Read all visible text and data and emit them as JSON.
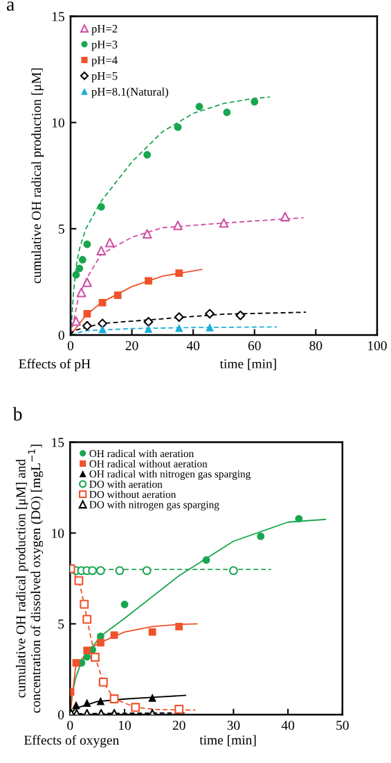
{
  "chart_data": [
    {
      "type": "scatter",
      "title": "a",
      "xlabel": "time [min]",
      "ylabel": "cumulative OH radical production [μM]",
      "annotations": [
        "Effects of pH"
      ],
      "xlim": [
        0,
        100
      ],
      "ylim": [
        0,
        15
      ],
      "xticks": [
        0,
        20,
        40,
        60,
        80,
        100
      ],
      "yticks": [
        0,
        5,
        10,
        15
      ],
      "grid": false,
      "legend": "top left",
      "series": [
        {
          "name": "pH=2",
          "color": "#d04fa6",
          "marker": "triangle",
          "x": [
            1.8,
            3.5,
            5.4,
            10,
            12.8,
            25,
            35,
            50,
            70
          ],
          "values": [
            0.65,
            2.0,
            2.48,
            3.97,
            4.35,
            4.76,
            5.16,
            5.27,
            5.57
          ]
        },
        {
          "name": "pH=3",
          "color": "#1aa650",
          "marker": "circle",
          "x": [
            1.8,
            2.9,
            3.9,
            5.4,
            10,
            25,
            35,
            42,
            51,
            60
          ],
          "values": [
            2.83,
            3.13,
            3.54,
            4.27,
            6.03,
            8.48,
            9.78,
            10.75,
            10.48,
            10.98
          ]
        },
        {
          "name": "pH=4",
          "color": "#f0522a",
          "marker": "square",
          "x": [
            5.4,
            10.4,
            15.4,
            25.4,
            35.4
          ],
          "values": [
            1.0,
            1.52,
            1.87,
            2.55,
            2.91
          ]
        },
        {
          "name": "pH=5",
          "color": "#000000",
          "marker": "diamond",
          "x": [
            5.4,
            10.4,
            25.4,
            35.4,
            45.4,
            55.4
          ],
          "values": [
            0.43,
            0.54,
            0.62,
            0.84,
            1.0,
            0.92
          ]
        },
        {
          "name": "pH=8.1(Natural)",
          "color": "#1aaedc",
          "marker": "triangle",
          "x": [
            10.4,
            25.4,
            35.4,
            45.4
          ],
          "values": [
            0.27,
            0.29,
            0.33,
            0.36
          ]
        },
        {
          "type": "line",
          "color": "#1aa650",
          "line_style": "dashed",
          "x": [
            0,
            0.5,
            1,
            2,
            3,
            5,
            10,
            20,
            30,
            40,
            50,
            60,
            65
          ],
          "values": [
            0,
            0.98,
            2.1,
            3.4,
            4.1,
            5.0,
            6.3,
            8.15,
            9.57,
            10.43,
            10.9,
            11.14,
            11.2
          ]
        },
        {
          "type": "line",
          "color": "#d04fa6",
          "line_style": "dashed",
          "x": [
            0,
            1,
            2.5,
            5,
            10,
            20,
            30,
            50,
            76
          ],
          "values": [
            0,
            0.65,
            1.74,
            2.6,
            3.8,
            4.6,
            5.05,
            5.27,
            5.52
          ]
        },
        {
          "type": "line",
          "color": "#f0522a",
          "line_style": "solid",
          "x": [
            0,
            5,
            10,
            20,
            30,
            42.8
          ],
          "values": [
            0,
            0.92,
            1.52,
            2.28,
            2.77,
            3.08
          ]
        },
        {
          "type": "line",
          "color": "#000000",
          "line_style": "dashed",
          "x": [
            0,
            1,
            10,
            30,
            50,
            76.8
          ],
          "values": [
            0,
            0.2,
            0.54,
            0.76,
            0.98,
            1.07
          ]
        },
        {
          "type": "line",
          "color": "#1aaedc",
          "line_style": "dashed",
          "x": [
            0,
            5,
            20,
            40,
            67.3
          ],
          "values": [
            0,
            0.2,
            0.3,
            0.35,
            0.38
          ]
        }
      ]
    },
    {
      "type": "scatter",
      "title": "b",
      "xlabel": "time [min]",
      "ylabel": "cumulative OH radical production [μM] and\nconcentration of dissolved oxygen (DO) [mgL$^{−1}$]",
      "annotations": [
        "Effects of oxygen"
      ],
      "xlim": [
        0,
        50
      ],
      "ylim": [
        0,
        15
      ],
      "xticks": [
        0,
        10,
        20,
        30,
        40,
        50
      ],
      "yticks": [
        0,
        5,
        10,
        15
      ],
      "grid": false,
      "legend": "top left",
      "series": [
        {
          "name": "OH radical with aeration",
          "color": "#1aa650",
          "marker": "circle",
          "x": [
            2.1,
            3.1,
            4.1,
            5.6,
            10.0,
            25.0,
            35.0,
            42.0
          ],
          "values": [
            2.85,
            3.18,
            3.57,
            4.31,
            6.07,
            8.51,
            9.82,
            10.79
          ]
        },
        {
          "name": "OH radical without aeration",
          "color": "#f0522a",
          "marker": "square",
          "x": [
            0.1,
            1.1,
            3.1,
            5.6,
            8.1,
            15.1,
            20.0
          ],
          "values": [
            1.26,
            2.85,
            3.54,
            3.96,
            4.38,
            4.55,
            4.85
          ]
        },
        {
          "name": "OH radical with nitrogen gas sparging",
          "color": "#000000",
          "marker": "triangle",
          "x": [
            1.1,
            3.1,
            5.6,
            15.1
          ],
          "values": [
            0.52,
            0.65,
            0.75,
            0.93
          ]
        },
        {
          "name": "DO with aeration",
          "color": "#1aa650",
          "marker": "circle",
          "x": [
            1.1,
            2.1,
            3.1,
            4.1,
            5.6,
            9.1,
            14.1,
            30.0
          ],
          "values": [
            7.93,
            7.93,
            7.93,
            7.93,
            7.93,
            7.93,
            7.93,
            7.93
          ]
        },
        {
          "name": "DO without aeration",
          "color": "#f0522a",
          "marker": "square",
          "x": [
            0.1,
            1.6,
            2.6,
            3.1,
            4.6,
            6.1,
            8.1,
            12.0,
            20.0
          ],
          "values": [
            8.03,
            7.38,
            6.08,
            5.25,
            3.16,
            1.79,
            0.87,
            0.4,
            0.3
          ]
        },
        {
          "name": "DO with nitrogen gas sparging",
          "color": "#000000",
          "marker": "triangle",
          "x": [
            0.2,
            1.2,
            3.1,
            5.7,
            8.1,
            15.1
          ],
          "values": [
            0.05,
            0.05,
            0.05,
            0.05,
            0.05,
            0.05
          ]
        },
        {
          "type": "line",
          "color": "#1aa650",
          "line_style": "solid",
          "x": [
            0,
            0.3,
            1,
            2,
            5.5,
            10,
            20,
            30,
            40,
            46.9
          ],
          "values": [
            0,
            1.0,
            2.0,
            2.85,
            4.3,
            5.3,
            7.65,
            9.55,
            10.6,
            10.75
          ]
        },
        {
          "type": "line",
          "color": "#f0522a",
          "line_style": "solid",
          "x": [
            0,
            1,
            3,
            5,
            10,
            15,
            20,
            23.3
          ],
          "values": [
            0,
            2.6,
            3.4,
            3.9,
            4.55,
            4.85,
            4.97,
            5.0
          ]
        },
        {
          "type": "line",
          "color": "#000000",
          "line_style": "solid",
          "x": [
            0,
            1,
            5,
            10,
            15,
            21.2
          ],
          "values": [
            0,
            0.35,
            0.72,
            0.86,
            0.95,
            1.06
          ]
        },
        {
          "type": "line",
          "color": "#1aa650",
          "line_style": "dashed",
          "x": [
            0.1,
            36.9
          ],
          "values": [
            8.0,
            8.0
          ]
        },
        {
          "type": "line",
          "color": "#f0522a",
          "line_style": "dashed",
          "x": [
            0.1,
            1.6,
            2.6,
            3.1,
            4.6,
            6.1,
            8.1,
            12.0,
            16,
            23
          ],
          "values": [
            8.03,
            7.38,
            6.08,
            5.25,
            3.16,
            1.79,
            0.87,
            0.4,
            0.28,
            0.25
          ]
        },
        {
          "type": "line",
          "color": "#000000",
          "line_style": "dashed",
          "x": [
            0,
            21
          ],
          "values": [
            0.05,
            0.1
          ]
        }
      ]
    }
  ]
}
